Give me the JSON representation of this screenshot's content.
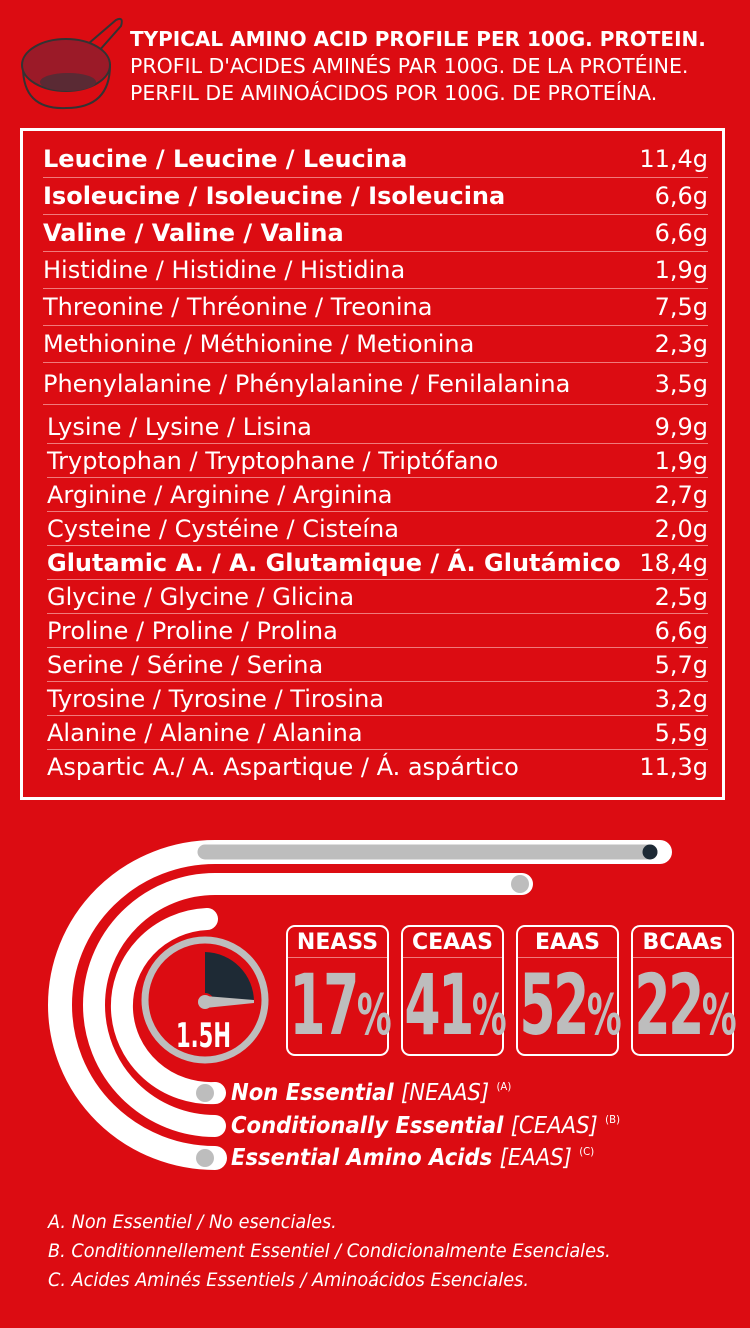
{
  "header": {
    "icon": "measuring-scoop-icon",
    "title_en": "TYPICAL AMINO ACID PROFILE PER 100G. PROTEIN.",
    "title_fr": "PROFIL D'ACIDES AMINÉS PAR 100G. DE LA PROTÉINE.",
    "title_es": "PERFIL DE AMINOÁCIDOS POR 100G. DE PROTEÍNA."
  },
  "amino_acids": [
    {
      "name": "Leucine /  Leucine / Leucina",
      "value": "11,4g",
      "bold": true
    },
    {
      "name": "Isoleucine /  Isoleucine / Isoleucina",
      "value": "6,6g",
      "bold": true
    },
    {
      "name": "Valine  /  Valine  / Valina",
      "value": "6,6g",
      "bold": true
    },
    {
      "name": "Histidine / Histidine / Histidina",
      "value": "1,9g",
      "bold": false
    },
    {
      "name": "Threonine /  Thréonine /  Treonina",
      "value": "7,5g",
      "bold": false
    },
    {
      "name": "Methionine / Méthionine / Metionina",
      "value": "2,3g",
      "bold": false
    },
    {
      "name": "Phenylalanine / Phénylalanine / Fenilalanina",
      "value": "3,5g",
      "bold": false
    },
    {
      "name": "Lysine / Lysine / Lisina",
      "value": "9,9g",
      "bold": false
    },
    {
      "name": "Tryptophan / Tryptophane / Triptófano",
      "value": "1,9g",
      "bold": false
    },
    {
      "name": "Arginine / Arginine / Arginina",
      "value": "2,7g",
      "bold": false
    },
    {
      "name": "Cysteine / Cystéine / Cisteína",
      "value": "2,0g",
      "bold": false
    },
    {
      "name": "Glutamic A. / A. Glutamique / Á. Glutámico",
      "value": "18,4g",
      "bold": true
    },
    {
      "name": "Glycine / Glycine / Glicina",
      "value": "2,5g",
      "bold": false
    },
    {
      "name": "Proline / Proline / Prolina",
      "value": "6,6g",
      "bold": false
    },
    {
      "name": "Serine / Sérine / Serina",
      "value": "5,7g",
      "bold": false
    },
    {
      "name": "Tyrosine / Tyrosine / Tirosina",
      "value": "3,2g",
      "bold": false
    },
    {
      "name": "Alanine / Alanine /  Alanina",
      "value": "5,5g",
      "bold": false
    },
    {
      "name": "Aspartic A./ A. Aspartique / Á. aspártico",
      "value": "11,3g",
      "bold": false
    }
  ],
  "timer": {
    "label": "1.5H",
    "icon": "stopwatch-icon"
  },
  "stats": [
    {
      "label": "NEASS",
      "value": "17",
      "unit": "%"
    },
    {
      "label": "CEAAS",
      "value": "41",
      "unit": "%"
    },
    {
      "label": "EAAS",
      "value": "52",
      "unit": "%"
    },
    {
      "label": "BCAAs",
      "value": "22",
      "unit": "%"
    }
  ],
  "legend": [
    {
      "text": "Non Essential",
      "abbr": "[NEAAS]",
      "ref": "(A)"
    },
    {
      "text": "Conditionally Essential",
      "abbr": "[CEAAS]",
      "ref": "(B)"
    },
    {
      "text": "Essential Amino Acids",
      "abbr": "[EAAS]",
      "ref": "(C)"
    }
  ],
  "footnotes": [
    "A. Non Essentiel / No esenciales.",
    "B. Conditionnellement Essentiel / Condicionalmente Esenciales.",
    "C. Acides Aminés Essentiels / Aminoácidos Esenciales."
  ],
  "colors": {
    "background": "#dc0c12",
    "gray": "#bdbdbd",
    "dark": "#1e2a35"
  }
}
